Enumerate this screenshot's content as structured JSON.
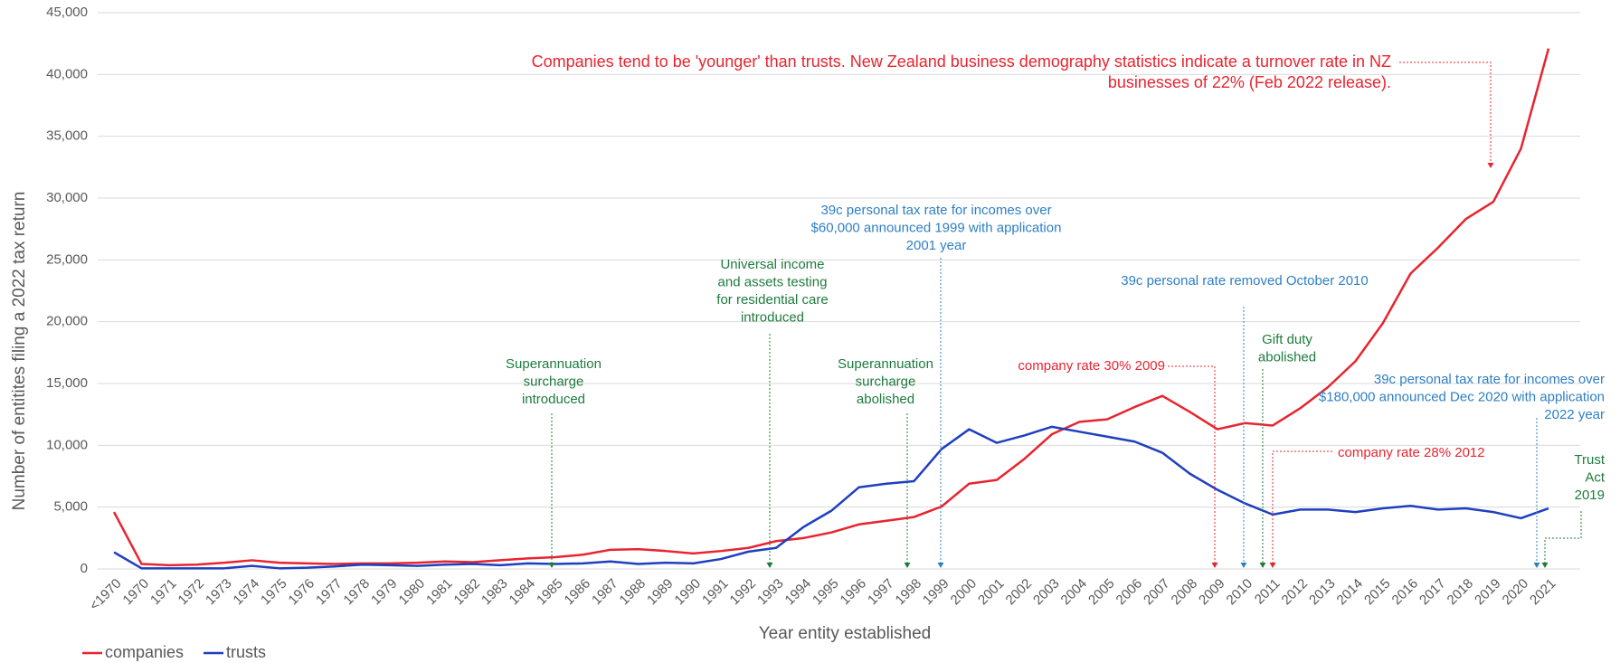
{
  "chart_data": {
    "type": "line",
    "x_label": "Year entity established",
    "y_label": "Number of entitites filing a 2022 tax return",
    "categories": [
      "<1970",
      "1970",
      "1971",
      "1972",
      "1973",
      "1974",
      "1975",
      "1976",
      "1977",
      "1978",
      "1979",
      "1980",
      "1981",
      "1982",
      "1983",
      "1984",
      "1985",
      "1986",
      "1987",
      "1988",
      "1989",
      "1990",
      "1991",
      "1992",
      "1993",
      "1994",
      "1995",
      "1996",
      "1997",
      "1998",
      "1999",
      "2000",
      "2001",
      "2002",
      "2003",
      "2004",
      "2005",
      "2006",
      "2007",
      "2008",
      "2009",
      "2010",
      "2011",
      "2012",
      "2013",
      "2014",
      "2015",
      "2016",
      "2017",
      "2018",
      "2019",
      "2020",
      "2021"
    ],
    "series": [
      {
        "name": "companies",
        "color": "#e8242f",
        "values": [
          4600,
          400,
          300,
          350,
          500,
          700,
          500,
          450,
          400,
          450,
          450,
          500,
          600,
          550,
          700,
          850,
          950,
          1150,
          1550,
          1600,
          1450,
          1250,
          1450,
          1700,
          2250,
          2500,
          2950,
          3600,
          3900,
          4200,
          5050,
          6900,
          7200,
          8900,
          10900,
          11900,
          12100,
          13100,
          14000,
          12700,
          11300,
          11800,
          11600,
          13000,
          14700,
          16800,
          19900,
          23900,
          26000,
          28300,
          29700,
          34000,
          42100
        ]
      },
      {
        "name": "trusts",
        "color": "#1f3fbf",
        "values": [
          1350,
          50,
          50,
          50,
          50,
          250,
          50,
          100,
          200,
          350,
          300,
          250,
          350,
          400,
          300,
          450,
          400,
          450,
          600,
          400,
          500,
          450,
          800,
          1400,
          1700,
          3400,
          4700,
          6600,
          6900,
          7100,
          9700,
          11300,
          10200,
          10800,
          11500,
          11100,
          10700,
          10300,
          9400,
          7700,
          6400,
          5300,
          4400,
          4800,
          4800,
          4600,
          4900,
          5100,
          4800,
          4900,
          4600,
          4100,
          4900
        ]
      }
    ],
    "ylim": [
      0,
      45000
    ],
    "yticks": [
      0,
      {
        "value": 5000,
        "label": "5,000"
      },
      {
        "value": 10000,
        "label": "10,000"
      },
      {
        "value": 15000,
        "label": "15,000"
      },
      {
        "value": 20000,
        "label": "20,000"
      },
      {
        "value": 25000,
        "label": "25,000"
      },
      {
        "value": 30000,
        "label": "30,000"
      },
      {
        "value": 35000,
        "label": "35,000"
      },
      {
        "value": 40000,
        "label": "40,000"
      },
      {
        "value": 45000,
        "label": "45,000"
      }
    ],
    "grid": true,
    "legend": "bottom-left",
    "annotations": [
      {
        "color": "#e8242f",
        "lines": [
          "Companies tend to be 'younger' than trusts.  New Zealand business demography statistics indicate a turnover rate in NZ",
          "businesses of 22% (Feb 2022 release)."
        ]
      },
      {
        "color": "#2e7fc4",
        "lines": [
          "39c personal tax rate for incomes over",
          "$60,000 announced 1999 with application",
          "2001 year"
        ]
      },
      {
        "color": "#1e7b3e",
        "lines": [
          "Universal income",
          "and assets testing",
          "for residential care",
          "introduced"
        ]
      },
      {
        "color": "#1e7b3e",
        "lines": [
          "Superannuation",
          "surcharge",
          "introduced"
        ]
      },
      {
        "color": "#1e7b3e",
        "lines": [
          "Superannuation",
          "surcharge",
          "abolished"
        ]
      },
      {
        "color": "#2e7fc4",
        "lines": [
          "39c personal rate removed October 2010"
        ]
      },
      {
        "color": "#e8242f",
        "lines": [
          "company rate 30% 2009"
        ]
      },
      {
        "color": "#1e7b3e",
        "lines": [
          "Gift duty",
          "abolished"
        ]
      },
      {
        "color": "#2e7fc4",
        "lines": [
          "39c personal tax rate for incomes over",
          "$180,000 announced Dec 2020 with application",
          "2022 year"
        ]
      },
      {
        "color": "#e8242f",
        "lines": [
          "company rate 28% 2012"
        ]
      },
      {
        "color": "#1e7b3e",
        "lines": [
          "Trust",
          "Act",
          "2019"
        ]
      }
    ]
  }
}
